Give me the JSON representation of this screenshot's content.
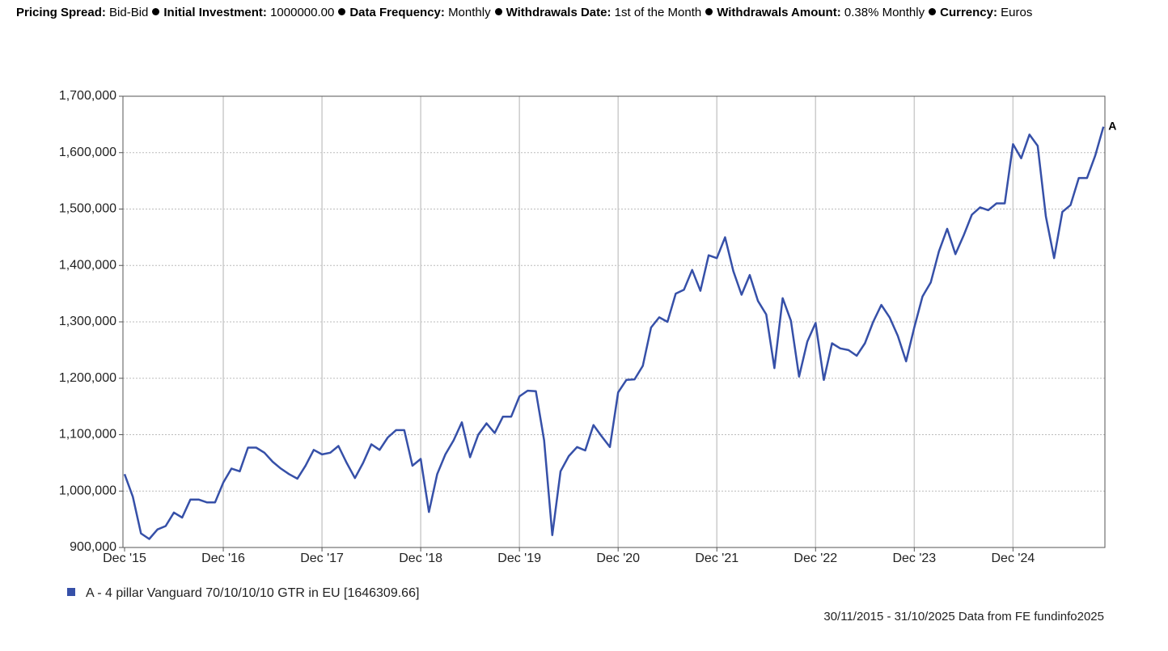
{
  "header": {
    "items": [
      {
        "label": "Pricing Spread:",
        "value": "Bid-Bid"
      },
      {
        "label": "Initial Investment:",
        "value": "1000000.00"
      },
      {
        "label": "Data Frequency:",
        "value": "Monthly"
      },
      {
        "label": "Withdrawals Date:",
        "value": "1st of the Month"
      },
      {
        "label": "Withdrawals Amount:",
        "value": "0.38% Monthly"
      },
      {
        "label": "Currency:",
        "value": "Euros"
      }
    ]
  },
  "chart_data": {
    "type": "line",
    "categories": [
      "Dec '15",
      null,
      null,
      null,
      null,
      null,
      null,
      null,
      null,
      null,
      null,
      null,
      "Dec '16",
      null,
      null,
      null,
      null,
      null,
      null,
      null,
      null,
      null,
      null,
      null,
      "Dec '17",
      null,
      null,
      null,
      null,
      null,
      null,
      null,
      null,
      null,
      null,
      null,
      "Dec '18",
      null,
      null,
      null,
      null,
      null,
      null,
      null,
      null,
      null,
      null,
      null,
      "Dec '19",
      null,
      null,
      null,
      null,
      null,
      null,
      null,
      null,
      null,
      null,
      null,
      "Dec '20",
      null,
      null,
      null,
      null,
      null,
      null,
      null,
      null,
      null,
      null,
      null,
      "Dec '21",
      null,
      null,
      null,
      null,
      null,
      null,
      null,
      null,
      null,
      null,
      null,
      "Dec '22",
      null,
      null,
      null,
      null,
      null,
      null,
      null,
      null,
      null,
      null,
      null,
      "Dec '23",
      null,
      null,
      null,
      null,
      null,
      null,
      null,
      null,
      null,
      null,
      null,
      "Dec '24",
      null,
      null,
      null,
      null,
      null,
      null,
      null,
      null,
      null,
      null,
      null
    ],
    "series": [
      {
        "name": "A - 4 pillar Vanguard 70/10/10/10 GTR in EU [1646309.66]",
        "color": "#3650a8",
        "values": [
          1030000,
          990000,
          925000,
          915000,
          932000,
          938000,
          962000,
          953000,
          985000,
          985000,
          980000,
          980000,
          1015000,
          1040000,
          1035000,
          1077000,
          1077000,
          1068000,
          1052000,
          1040000,
          1030000,
          1022000,
          1045000,
          1073000,
          1065000,
          1068000,
          1080000,
          1050000,
          1023000,
          1050000,
          1083000,
          1073000,
          1095000,
          1108000,
          1108000,
          1045000,
          1057000,
          963000,
          1030000,
          1065000,
          1090000,
          1122000,
          1060000,
          1100000,
          1120000,
          1103000,
          1132000,
          1132000,
          1168000,
          1178000,
          1177000,
          1090000,
          922000,
          1035000,
          1062000,
          1078000,
          1072000,
          1117000,
          1097000,
          1078000,
          1175000,
          1197000,
          1198000,
          1222000,
          1290000,
          1308000,
          1300000,
          1350000,
          1357000,
          1392000,
          1355000,
          1418000,
          1413000,
          1450000,
          1390000,
          1348000,
          1383000,
          1337000,
          1313000,
          1218000,
          1342000,
          1302000,
          1203000,
          1265000,
          1298000,
          1197000,
          1262000,
          1253000,
          1250000,
          1240000,
          1262000,
          1300000,
          1330000,
          1308000,
          1275000,
          1230000,
          1290000,
          1345000,
          1370000,
          1425000,
          1465000,
          1420000,
          1453000,
          1490000,
          1503000,
          1498000,
          1510000,
          1510000,
          1615000,
          1590000,
          1632000,
          1612000,
          1487000,
          1413000,
          1495000,
          1507000,
          1555000,
          1555000,
          1595000,
          1646000
        ]
      }
    ],
    "end_label": "A",
    "ylim": [
      900000,
      1700000
    ],
    "yticks": [
      {
        "value": 900000,
        "label": "900,000"
      },
      {
        "value": 1000000,
        "label": "1,000,000"
      },
      {
        "value": 1100000,
        "label": "1,100,000"
      },
      {
        "value": 1200000,
        "label": "1,200,000"
      },
      {
        "value": 1300000,
        "label": "1,300,000"
      },
      {
        "value": 1400000,
        "label": "1,400,000"
      },
      {
        "value": 1500000,
        "label": "1,500,000"
      },
      {
        "value": 1600000,
        "label": "1,600,000"
      },
      {
        "value": 1700000,
        "label": "1,700,000"
      }
    ],
    "grid": true,
    "source": "30/11/2015 - 31/10/2025 Data from FE fundinfo2025"
  }
}
